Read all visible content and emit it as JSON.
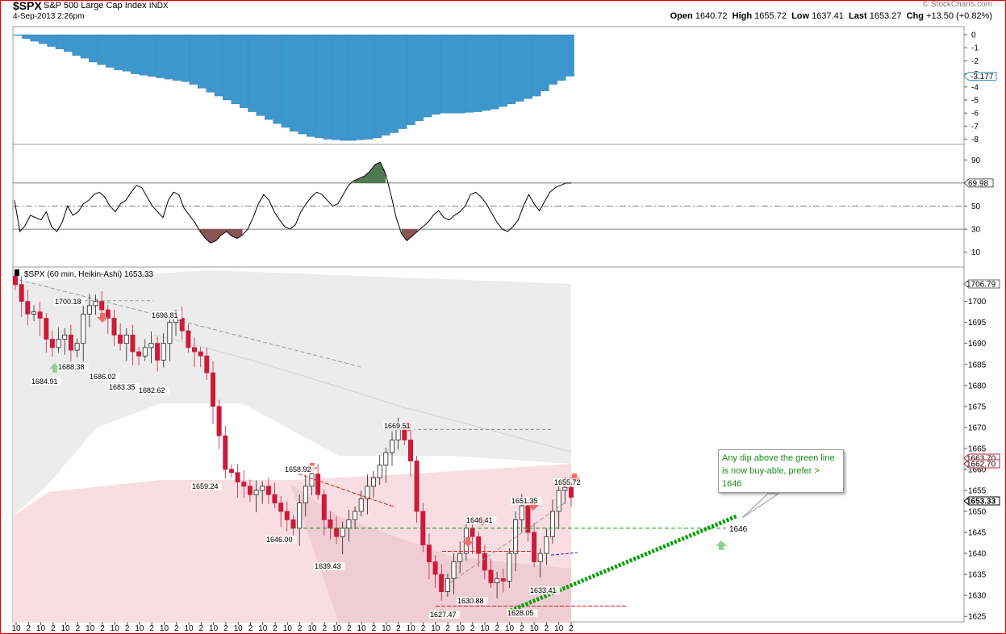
{
  "header": {
    "symbol": "$SPX",
    "name": "S&P 500 Large Cap Index",
    "exchange": "INDX",
    "datetime": "4-Sep-2013 2:26pm",
    "watermark": "© StockCharts.com",
    "open_label": "Open",
    "open_value": "1640.72",
    "high_label": "High",
    "high_value": "1655.72",
    "low_label": "Low",
    "low_value": "1637.41",
    "last_label": "Last",
    "last_value": "1653.27",
    "chg_label": "Chg",
    "chg_value": "+13.50 (+0.82%)"
  },
  "colors": {
    "histogram": "#3c97cf",
    "bear_candle": "#cc1a3a",
    "bull_candle": "#ffffff",
    "rsi_over": "#4f7a4f",
    "rsi_under": "#8a5555",
    "trend": "#00a000",
    "support": "#209020"
  },
  "chart_data": [
    {
      "type": "bar",
      "series": [
        {
          "values": [
            0,
            -0.3,
            -0.5,
            -0.7,
            -0.9,
            -1.1,
            -1.3,
            -1.6,
            -1.8,
            -2.1,
            -2.3,
            -2.5,
            -2.7,
            -2.8,
            -3.0,
            -3.1,
            -3.2,
            -3.3,
            -3.4,
            -3.5,
            -3.6,
            -3.8,
            -4.1,
            -4.4,
            -4.7,
            -5.0,
            -5.3,
            -5.6,
            -5.9,
            -6.2,
            -6.5,
            -6.8,
            -7.1,
            -7.4,
            -7.6,
            -7.8,
            -7.9,
            -8.0,
            -8.05,
            -8.1,
            -8.1,
            -8.05,
            -8.0,
            -7.9,
            -7.7,
            -7.5,
            -7.2,
            -6.9,
            -6.6,
            -6.3,
            -6.1,
            -6.0,
            -6.0,
            -6.0,
            -5.95,
            -5.9,
            -5.8,
            -5.7,
            -5.5,
            -5.3,
            -5.1,
            -4.9,
            -4.7,
            -4.3,
            -3.8,
            -3.5,
            -3.177
          ]
        }
      ],
      "ylim": [
        -8.5,
        0.3
      ],
      "yticks": [
        "0",
        "-1",
        "-2",
        "-3",
        "-4",
        "-5",
        "-6",
        "-7",
        "-8"
      ],
      "last_value_label": "-3.177"
    },
    {
      "type": "line",
      "series": [
        {
          "values": [
            55,
            28,
            33,
            42,
            40,
            38,
            45,
            32,
            28,
            36,
            50,
            42,
            45,
            52,
            55,
            60,
            62,
            58,
            50,
            45,
            52,
            55,
            62,
            68,
            66,
            58,
            50,
            45,
            40,
            55,
            62,
            60,
            48,
            42,
            36,
            28,
            22,
            18,
            20,
            25,
            28,
            24,
            22,
            25,
            30,
            40,
            52,
            60,
            55,
            45,
            38,
            32,
            30,
            34,
            45,
            52,
            58,
            62,
            60,
            55,
            50,
            52,
            60,
            68,
            72,
            74,
            76,
            80,
            86,
            88,
            78,
            60,
            40,
            26,
            20,
            24,
            28,
            32,
            36,
            42,
            46,
            40,
            38,
            42,
            45,
            50,
            60,
            62,
            58,
            52,
            44,
            36,
            30,
            28,
            32,
            38,
            50,
            60,
            52,
            46,
            54,
            62,
            66,
            68,
            70,
            69.98
          ]
        }
      ],
      "ylim": [
        0,
        100
      ],
      "yticks": [
        "90",
        "50",
        "30",
        "10"
      ],
      "levels": [
        70,
        50,
        30
      ],
      "last_value_label": "69.98"
    },
    {
      "type": "candlestick",
      "title": "$SPX (60 min, Heikin-Ashi) 1653.33",
      "ylim": [
        1623.5,
        1708
      ],
      "yticks": [
        "1700",
        "1695",
        "1690",
        "1685",
        "1680",
        "1675",
        "1670",
        "1665",
        "1660",
        "1655",
        "1650",
        "1645",
        "1640",
        "1635",
        "1630",
        "1625"
      ],
      "xticks": [
        "10",
        "2",
        "10",
        "2",
        "10",
        "2",
        "10",
        "2",
        "10",
        "2",
        "10",
        "2",
        "10",
        "2",
        "10",
        "2",
        "10",
        "2",
        "10",
        "2",
        "10",
        "2",
        "10",
        "2",
        "10",
        "2",
        "10",
        "2",
        "10",
        "2",
        "10",
        "2",
        "10",
        "2",
        "10",
        "2",
        "10",
        "2",
        "10",
        "2",
        "10",
        "2",
        "10",
        "2",
        "10",
        "2"
      ],
      "price_tags": [
        "1706.79",
        "1663.70",
        "1662.70",
        "1653.33"
      ],
      "closes": [
        1704,
        1700,
        1697,
        1697.5,
        1696,
        1691,
        1689,
        1691,
        1692,
        1688.38,
        1690,
        1697,
        1699,
        1700,
        1698,
        1696,
        1692,
        1690,
        1692,
        1688,
        1687,
        1689,
        1690,
        1686,
        1690,
        1695,
        1696,
        1693,
        1689,
        1688,
        1687,
        1683,
        1675,
        1668,
        1660,
        1659.24,
        1657,
        1656,
        1654,
        1655,
        1656,
        1654,
        1652,
        1650,
        1648,
        1646.0,
        1652,
        1656,
        1658.92,
        1654,
        1648,
        1646,
        1644,
        1646,
        1648,
        1650,
        1653,
        1656,
        1658,
        1661,
        1664,
        1667,
        1669.51,
        1667,
        1662,
        1650,
        1642,
        1638,
        1635,
        1630.88,
        1634,
        1638,
        1640,
        1646,
        1644,
        1640,
        1636,
        1633,
        1634,
        1633.41,
        1640,
        1648,
        1651.35,
        1645,
        1638,
        1640,
        1644,
        1650,
        1655,
        1655.72,
        1653.33
      ],
      "labels": [
        "1700.18",
        "1696.81",
        "1688.38",
        "1684.91",
        "1686.02",
        "1683.35",
        "1682.62",
        "1659.24",
        "1658.92",
        "1646.00",
        "1639.43",
        "1669.51",
        "1646.41",
        "1630.88",
        "1627.47",
        "1651.35",
        "1628.05",
        "1633.41",
        "1655.72"
      ],
      "annotation_level": "1646",
      "annotation": "Any dip above the green line is now buy-able, prefer > 1646"
    }
  ]
}
